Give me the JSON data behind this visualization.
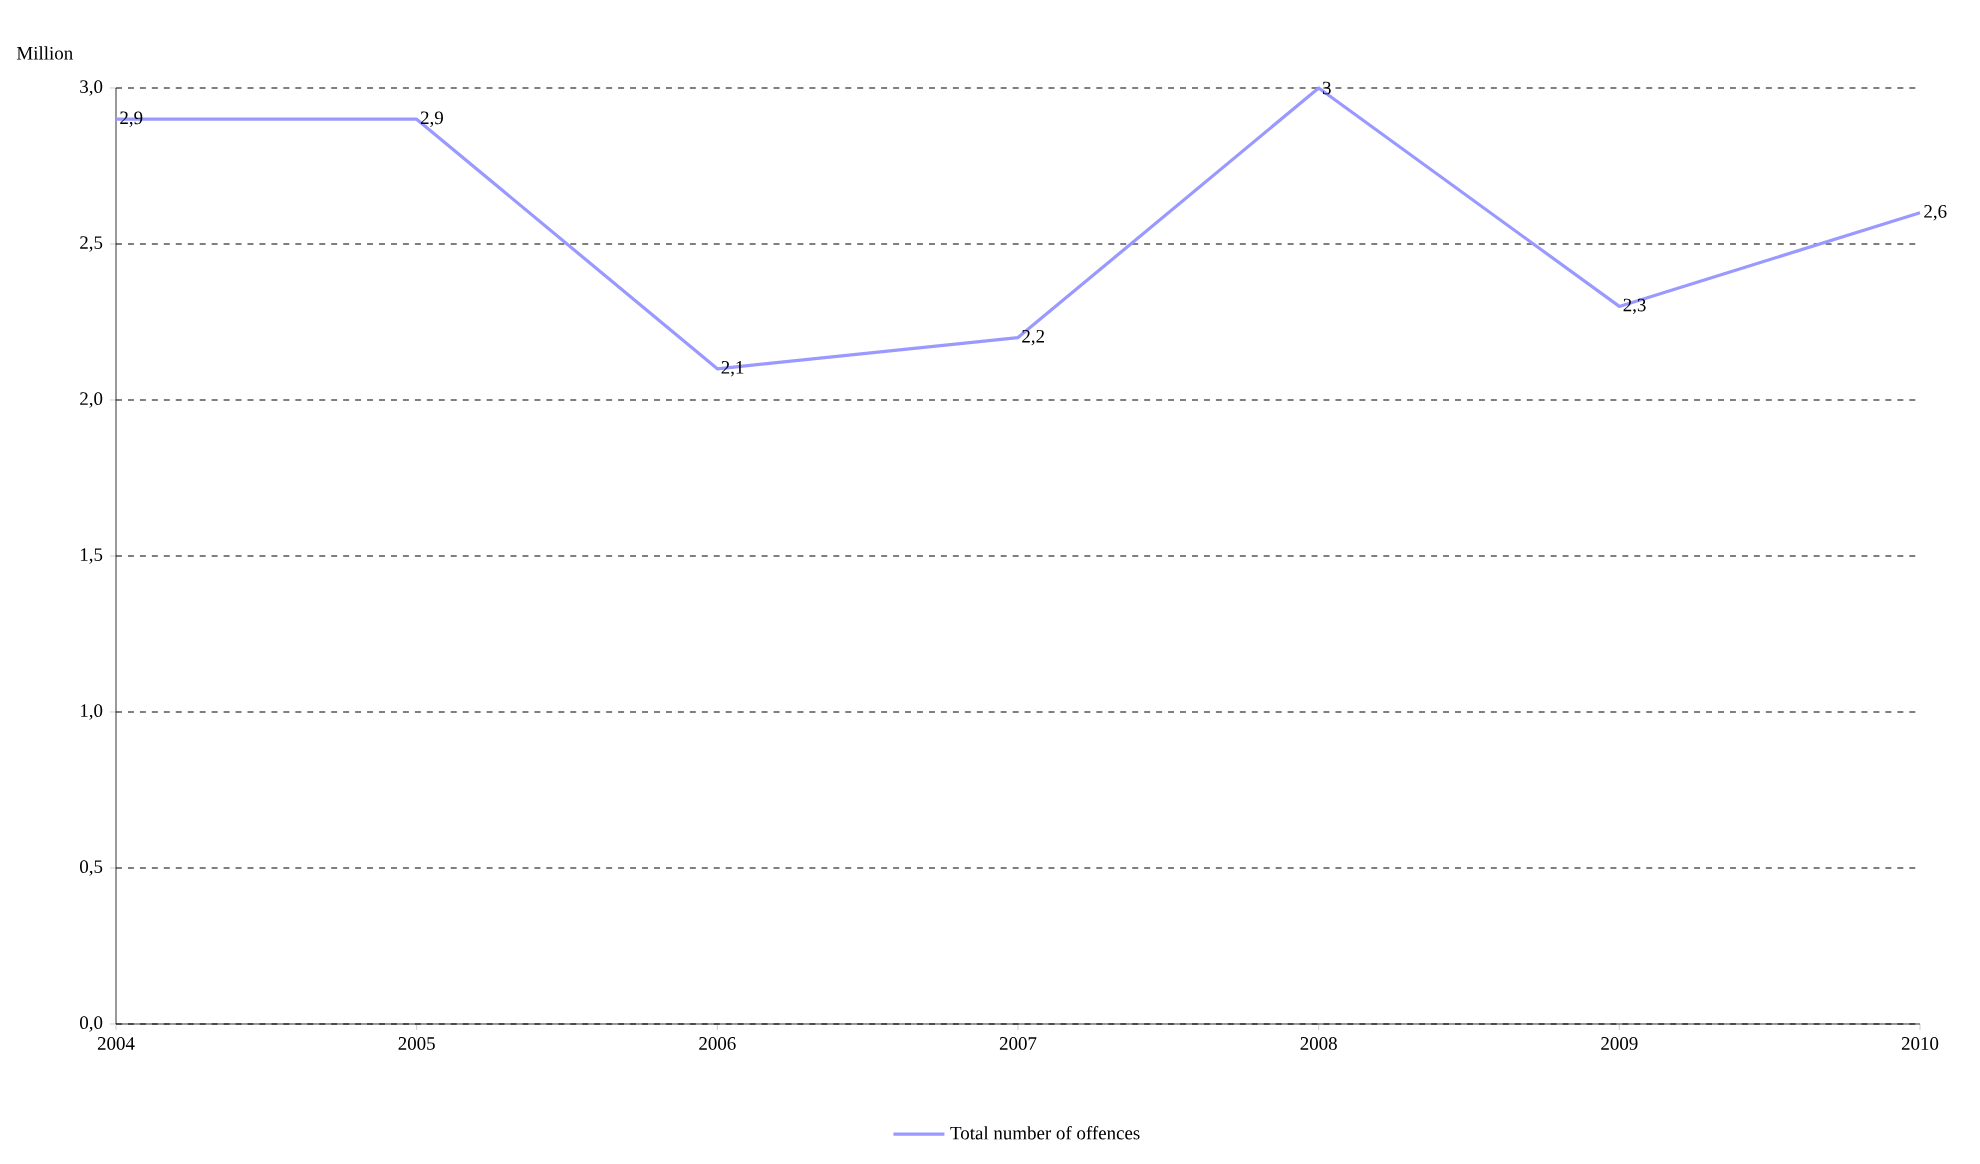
{
  "chart_data": {
    "type": "line",
    "ylabel": "Million",
    "categories": [
      "2004",
      "2005",
      "2006",
      "2007",
      "2008",
      "2009",
      "2010"
    ],
    "series": [
      {
        "name": "Total number of offences",
        "color": "#9999ff",
        "values": [
          2.9,
          2.9,
          2.1,
          2.2,
          3.0,
          2.3,
          2.6
        ],
        "value_labels": [
          "2,9",
          "2,9",
          "2,1",
          "2,2",
          "3",
          "2,3",
          "2,6"
        ]
      }
    ],
    "ylim": [
      0,
      3
    ],
    "yticks": [
      {
        "value": 0,
        "label": "0,0"
      },
      {
        "value": 0.5,
        "label": "0,5"
      },
      {
        "value": 1,
        "label": "1,0"
      },
      {
        "value": 1.5,
        "label": "1,5"
      },
      {
        "value": 2,
        "label": "2,0"
      },
      {
        "value": 2.5,
        "label": "2,5"
      },
      {
        "value": 3,
        "label": "3,0"
      }
    ],
    "grid": "y",
    "legend": "bottom",
    "marker": "none",
    "line_style": "solid"
  }
}
